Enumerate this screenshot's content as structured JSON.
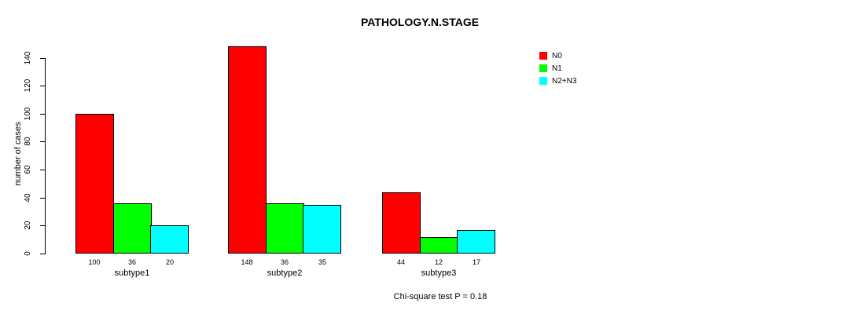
{
  "chart_data": {
    "type": "bar",
    "title": "PATHOLOGY.N.STAGE",
    "ylabel": "number of cases",
    "xlabel": "",
    "categories": [
      "subtype1",
      "subtype2",
      "subtype3"
    ],
    "series": [
      {
        "name": "N0",
        "color": "#ff0000",
        "values": [
          100,
          148,
          44
        ]
      },
      {
        "name": "N1",
        "color": "#00ff00",
        "values": [
          36,
          36,
          12
        ]
      },
      {
        "name": "N2+N3",
        "color": "#00ffff",
        "values": [
          20,
          35,
          17
        ]
      }
    ],
    "ylim": [
      0,
      140
    ],
    "yticks": [
      0,
      20,
      40,
      60,
      80,
      100,
      120,
      140
    ],
    "grid": false,
    "legend_position": "top-right",
    "bar_value_labels_shown": true,
    "bar_border_color": "#000000",
    "axis_color": "#000000",
    "annotation": "Chi-square test P = 0.18"
  }
}
